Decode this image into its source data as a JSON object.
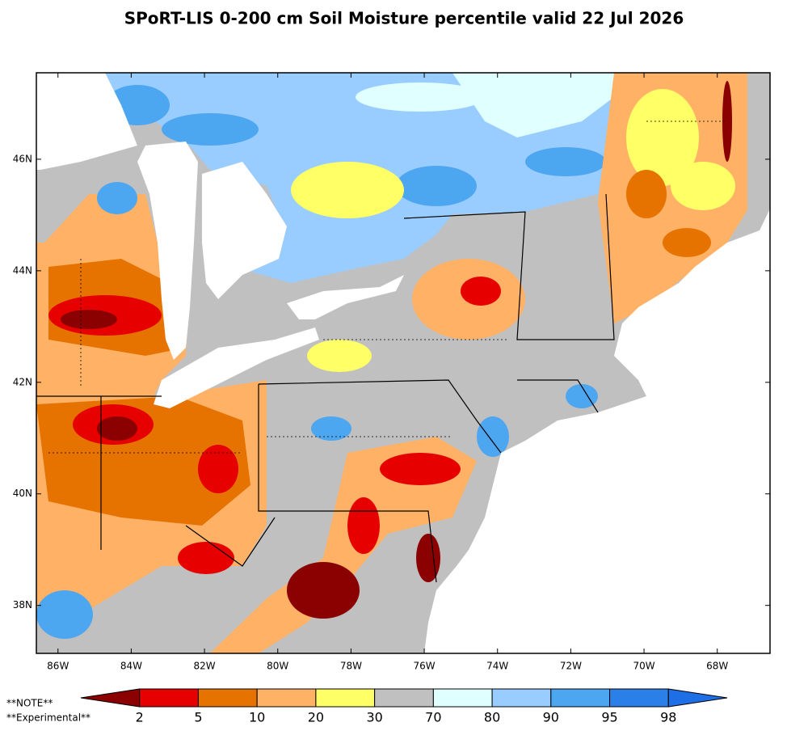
{
  "title": "SPoRT-LIS 0-200 cm Soil Moisture percentile valid 22 Jul 2026",
  "map": {
    "xlim": [
      -86.59,
      -66.56
    ],
    "ylim": [
      37.14,
      47.55
    ],
    "xticks": [
      {
        "value": -86,
        "label": "86W"
      },
      {
        "value": -84,
        "label": "84W"
      },
      {
        "value": -82,
        "label": "82W"
      },
      {
        "value": -80,
        "label": "80W"
      },
      {
        "value": -78,
        "label": "78W"
      },
      {
        "value": -76,
        "label": "76W"
      },
      {
        "value": -74,
        "label": "74W"
      },
      {
        "value": -72,
        "label": "72W"
      },
      {
        "value": -70,
        "label": "70W"
      },
      {
        "value": -68,
        "label": "68W"
      }
    ],
    "yticks": [
      {
        "value": 38,
        "label": "38N"
      },
      {
        "value": 40,
        "label": "40N"
      },
      {
        "value": 42,
        "label": "42N"
      },
      {
        "value": 44,
        "label": "44N"
      },
      {
        "value": 46,
        "label": "46N"
      }
    ]
  },
  "colorbar": {
    "colors": [
      "#8b0000",
      "#e60000",
      "#e67300",
      "#ffb266",
      "#ffff66",
      "#c0c0c0",
      "#e0ffff",
      "#99ccff",
      "#4da6f0",
      "#2a7fe8",
      "#1e6ee6"
    ],
    "ticks": [
      2,
      5,
      10,
      20,
      30,
      70,
      80,
      90,
      95,
      98
    ]
  },
  "notes": [
    "**NOTE**",
    "**Experimental**"
  ]
}
